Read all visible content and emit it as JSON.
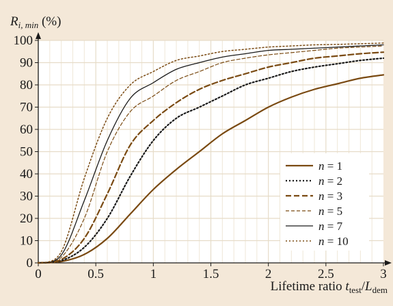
{
  "chart_data": {
    "type": "line",
    "y_title": {
      "main": "R",
      "sub": "i, min",
      "unit": " (%)"
    },
    "x_title": {
      "main": "Lifetime ratio ",
      "var": "t",
      "sub1": "test",
      "slash": "/",
      "var2": "L",
      "sub2": "dem"
    },
    "xlim": [
      0,
      3
    ],
    "ylim": [
      0,
      100
    ],
    "x_ticks": [
      "0",
      "0.5",
      "1",
      "1.5",
      "2",
      "2.5",
      "3"
    ],
    "y_ticks": [
      "0",
      "10",
      "20",
      "30",
      "40",
      "50",
      "60",
      "70",
      "80",
      "90",
      "100"
    ],
    "grid": true,
    "legend_position": "lower-right",
    "model": "R = 1 - exp(-(t/θ)^k), θ = 1.276, k = 2.8",
    "series": [
      {
        "n": 1,
        "label_var": "n",
        "label_eq": " = 1",
        "color": "#7a4a12",
        "style": "solid",
        "width": 2.2,
        "x": [
          0,
          0.2,
          0.4,
          0.6,
          0.8,
          1.0,
          1.2,
          1.4,
          1.6,
          1.8,
          2.0,
          2.2,
          2.4,
          2.6,
          2.8,
          3.0
        ],
        "y": [
          0,
          0.6,
          3.8,
          11,
          22,
          33,
          42,
          50,
          58,
          64,
          70,
          74.5,
          78,
          80.5,
          83,
          84.5
        ]
      },
      {
        "n": 2,
        "label_var": "n",
        "label_eq": " = 2",
        "color": "#1a1a1a",
        "style": "dotted",
        "width": 2.2,
        "x": [
          0,
          0.2,
          0.4,
          0.6,
          0.8,
          1.0,
          1.2,
          1.4,
          1.6,
          1.8,
          2.0,
          2.2,
          2.4,
          2.6,
          2.8,
          3.0
        ],
        "y": [
          0,
          1,
          7,
          20,
          39,
          55,
          65,
          70,
          75,
          80,
          83,
          86,
          88,
          89.5,
          91,
          92
        ]
      },
      {
        "n": 3,
        "label_var": "n",
        "label_eq": " = 3",
        "color": "#7a4a12",
        "style": "dashed",
        "width": 2.2,
        "x": [
          0,
          0.2,
          0.4,
          0.6,
          0.8,
          1.0,
          1.2,
          1.4,
          1.6,
          1.8,
          2.0,
          2.2,
          2.4,
          2.6,
          2.8,
          3.0
        ],
        "y": [
          0,
          1.5,
          11,
          31,
          53,
          64,
          72,
          78,
          82,
          85,
          88,
          90,
          92,
          93,
          94,
          94.7
        ]
      },
      {
        "n": 5,
        "label_var": "n",
        "label_eq": " = 5",
        "color": "#7a4a12",
        "style": "dashed-thin",
        "width": 1.2,
        "x": [
          0,
          0.2,
          0.4,
          0.6,
          0.8,
          1.0,
          1.2,
          1.4,
          1.6,
          1.8,
          2.0,
          2.2,
          2.4,
          2.6,
          2.8,
          3.0
        ],
        "y": [
          0,
          2.5,
          20,
          50,
          68,
          75,
          82,
          86,
          90,
          92,
          93.5,
          94.5,
          95.5,
          96.5,
          97,
          97.5
        ]
      },
      {
        "n": 7,
        "label_var": "n",
        "label_eq": " = 7",
        "color": "#1a1a1a",
        "style": "solid",
        "width": 1.3,
        "x": [
          0,
          0.2,
          0.4,
          0.6,
          0.8,
          1.0,
          1.2,
          1.4,
          1.6,
          1.8,
          2.0,
          2.2,
          2.4,
          2.6,
          2.8,
          3.0
        ],
        "y": [
          0,
          3.5,
          28,
          55,
          74,
          81,
          87,
          90,
          92.5,
          94,
          95.5,
          96,
          96.5,
          97,
          97.5,
          98
        ]
      },
      {
        "n": 10,
        "label_var": "n",
        "label_eq": " = 10",
        "color": "#7a4a12",
        "style": "dotted",
        "width": 1.5,
        "x": [
          0,
          0.2,
          0.4,
          0.6,
          0.8,
          1.0,
          1.2,
          1.4,
          1.6,
          1.8,
          2.0,
          2.2,
          2.4,
          2.6,
          2.8,
          3.0
        ],
        "y": [
          0,
          5,
          38,
          65,
          80,
          86,
          91,
          93,
          95,
          96,
          97,
          97.5,
          98,
          98.2,
          98.5,
          98.8
        ]
      }
    ]
  }
}
